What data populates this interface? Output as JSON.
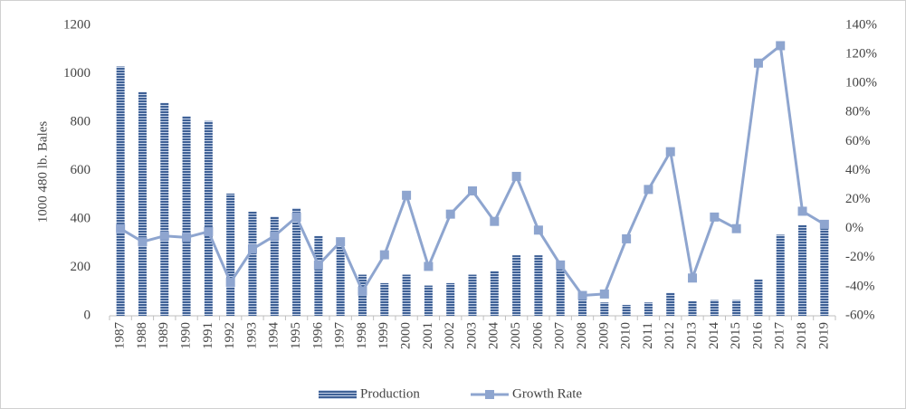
{
  "chart_data": {
    "type": "bar-line",
    "y_label": "1000 480 lb. Bales",
    "categories": [
      "1987",
      "1988",
      "1989",
      "1990",
      "1991",
      "1992",
      "1993",
      "1994",
      "1995",
      "1996",
      "1997",
      "1998",
      "1999",
      "2000",
      "2001",
      "2002",
      "2003",
      "2004",
      "2005",
      "2006",
      "2007",
      "2008",
      "2009",
      "2010",
      "2011",
      "2012",
      "2013",
      "2014",
      "2015",
      "2016",
      "2017",
      "2018",
      "2019"
    ],
    "series": [
      {
        "name": "Production",
        "type": "bar",
        "color": "#3f6196",
        "values": [
          1030,
          925,
          880,
          825,
          805,
          505,
          430,
          410,
          445,
          330,
          290,
          170,
          135,
          170,
          125,
          135,
          170,
          185,
          250,
          250,
          220,
          80,
          55,
          45,
          55,
          95,
          60,
          65,
          65,
          150,
          335,
          375,
          385
        ]
      },
      {
        "name": "Growth Rate",
        "type": "line",
        "axis": "y2",
        "color": "#8ea5cf",
        "values": [
          0,
          -9,
          -5,
          -6,
          -2,
          -37,
          -14,
          -5,
          8,
          -25,
          -9,
          -43,
          -18,
          23,
          -26,
          10,
          26,
          5,
          36,
          -1,
          -25,
          -46,
          -45,
          -7,
          27,
          53,
          -34,
          8,
          0,
          114,
          126,
          12,
          3
        ]
      }
    ],
    "ylim": [
      0,
      1200
    ],
    "yticks": [
      0,
      200,
      400,
      600,
      800,
      1000,
      1200
    ],
    "y2lim": [
      -60,
      140
    ],
    "y2ticks": [
      {
        "value": -60,
        "label": "-60%"
      },
      {
        "value": -40,
        "label": "-40%"
      },
      {
        "value": -20,
        "label": "-20%"
      },
      {
        "value": 0,
        "label": "0%"
      },
      {
        "value": 20,
        "label": "20%"
      },
      {
        "value": 40,
        "label": "40%"
      },
      {
        "value": 60,
        "label": "60%"
      },
      {
        "value": 80,
        "label": "80%"
      },
      {
        "value": 100,
        "label": "100%"
      },
      {
        "value": 120,
        "label": "120%"
      },
      {
        "value": 140,
        "label": "140%"
      }
    ],
    "legend": "bottom"
  }
}
